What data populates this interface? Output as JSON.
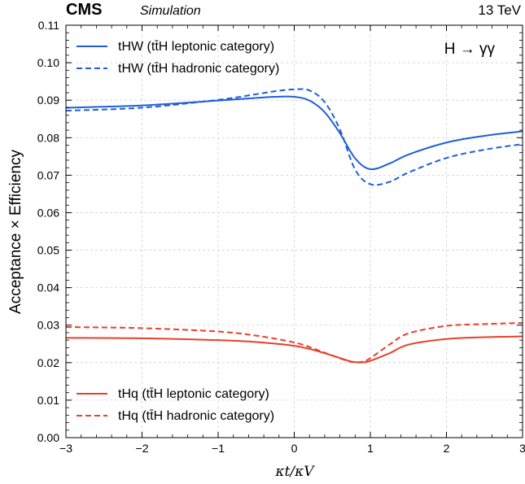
{
  "header": {
    "experiment": "CMS",
    "tag": "Simulation",
    "energy": "13 TeV"
  },
  "process_label": "H → γγ",
  "chart_data": {
    "type": "line",
    "xlabel": "κt/κV",
    "ylabel": "Acceptance × Efficiency",
    "xlim": [
      -3,
      3
    ],
    "ylim": [
      0,
      0.11
    ],
    "xticks": [
      "−3",
      "−2",
      "−1",
      "0",
      "1",
      "2",
      "3"
    ],
    "yticks": [
      "0.00",
      "0.01",
      "0.02",
      "0.03",
      "0.04",
      "0.05",
      "0.06",
      "0.07",
      "0.08",
      "0.09",
      "0.10",
      "0.11"
    ],
    "grid": true,
    "legend_placement": [
      "top-left",
      "bottom-left"
    ],
    "series": [
      {
        "name": "tHW (tt̄H leptonic category)",
        "color": "#1f5fd6",
        "style": "solid",
        "x": [
          -3,
          -2,
          -1,
          -0.5,
          -0.25,
          0,
          0.2,
          0.4,
          0.6,
          0.8,
          1.0,
          1.25,
          1.5,
          2.0,
          2.5,
          3.0
        ],
        "y": [
          0.088,
          0.0886,
          0.0899,
          0.0906,
          0.0909,
          0.0909,
          0.0899,
          0.0868,
          0.0812,
          0.0745,
          0.0716,
          0.0731,
          0.0755,
          0.0787,
          0.0805,
          0.0817
        ]
      },
      {
        "name": "tHW (tt̄H hadronic category)",
        "color": "#1f5fd6",
        "style": "dashed",
        "x": [
          -3,
          -2,
          -1,
          -0.5,
          -0.25,
          0,
          0.2,
          0.4,
          0.6,
          0.8,
          1.0,
          1.25,
          1.5,
          2.0,
          2.5,
          3.0
        ],
        "y": [
          0.0872,
          0.088,
          0.0901,
          0.0916,
          0.0924,
          0.0929,
          0.0926,
          0.0895,
          0.0822,
          0.0715,
          0.0676,
          0.0682,
          0.0707,
          0.0746,
          0.0768,
          0.0783
        ]
      },
      {
        "name": "tHq (tt̄H leptonic category)",
        "color": "#e8402a",
        "style": "solid",
        "x": [
          -3,
          -2,
          -1,
          -0.5,
          0,
          0.25,
          0.5,
          0.75,
          0.9,
          1.0,
          1.25,
          1.5,
          2.0,
          2.5,
          3.0
        ],
        "y": [
          0.0266,
          0.0265,
          0.026,
          0.0255,
          0.0245,
          0.0234,
          0.0219,
          0.0203,
          0.0201,
          0.0205,
          0.0225,
          0.0248,
          0.0263,
          0.0268,
          0.027
        ]
      },
      {
        "name": "tHq (tt̄H hadronic category)",
        "color": "#e8402a",
        "style": "dashed",
        "x": [
          -3,
          -2,
          -1,
          -0.5,
          0,
          0.25,
          0.5,
          0.75,
          0.9,
          1.0,
          1.25,
          1.5,
          2.0,
          2.5,
          3.0
        ],
        "y": [
          0.0295,
          0.0292,
          0.0283,
          0.0272,
          0.0254,
          0.0238,
          0.0219,
          0.0202,
          0.0203,
          0.0212,
          0.0248,
          0.0278,
          0.0298,
          0.0303,
          0.0306
        ]
      }
    ]
  }
}
